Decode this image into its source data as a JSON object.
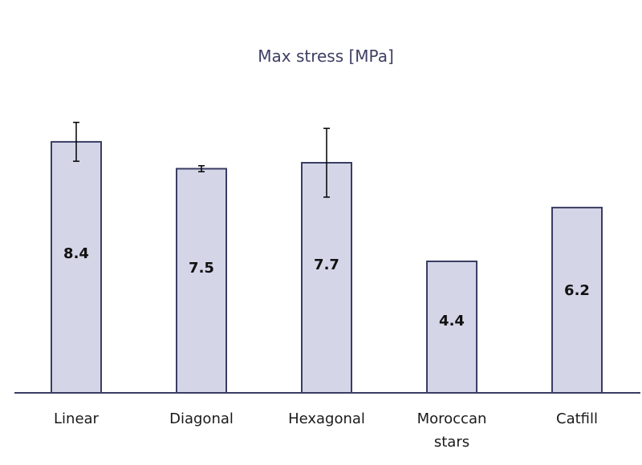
{
  "chart_data": {
    "type": "bar",
    "title": "Max stress [MPa]",
    "xlabel": "",
    "ylabel": "",
    "categories": [
      [
        "Linear"
      ],
      [
        "Diagonal"
      ],
      [
        "Hexagonal"
      ],
      [
        "Moroccan",
        "stars"
      ],
      [
        "Catfill"
      ]
    ],
    "values": [
      8.4,
      7.5,
      7.7,
      4.4,
      6.2
    ],
    "value_labels": [
      "8.4",
      "7.5",
      "7.7",
      "4.4",
      "6.2"
    ],
    "error": [
      0.65,
      0.1,
      1.15,
      null,
      null
    ],
    "ylim": [
      0,
      11
    ],
    "grid": false,
    "legend": "none",
    "colors": {
      "bar_fill": "#d4d6e8",
      "bar_stroke": "#3a3d63",
      "title": "#3e3f63"
    }
  }
}
